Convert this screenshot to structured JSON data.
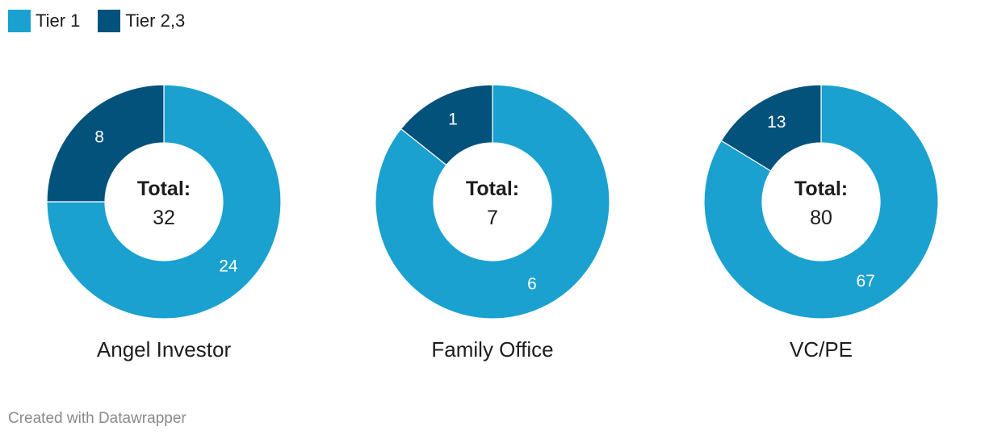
{
  "legend": [
    {
      "label": "Tier 1",
      "color": "#1aa1cf"
    },
    {
      "label": "Tier 2,3",
      "color": "#03527b"
    }
  ],
  "chart_data": [
    {
      "type": "pie",
      "title": "Angel Investor",
      "center_label": "Total:",
      "total": "32",
      "slices": [
        {
          "name": "Tier 1",
          "value": 24
        },
        {
          "name": "Tier 2,3",
          "value": 8
        }
      ]
    },
    {
      "type": "pie",
      "title": "Family Office",
      "center_label": "Total:",
      "total": "7",
      "slices": [
        {
          "name": "Tier 1",
          "value": 6
        },
        {
          "name": "Tier 2,3",
          "value": 1
        }
      ]
    },
    {
      "type": "pie",
      "title": "VC/PE",
      "center_label": "Total:",
      "total": "80",
      "slices": [
        {
          "name": "Tier 1",
          "value": 67
        },
        {
          "name": "Tier 2,3",
          "value": 13
        }
      ]
    }
  ],
  "footer": "Created with Datawrapper"
}
